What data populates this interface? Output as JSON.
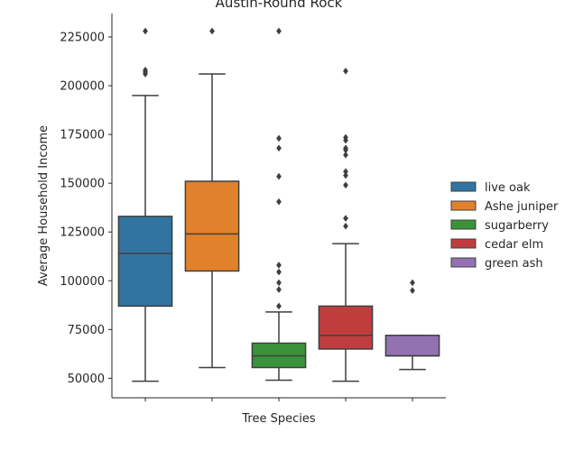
{
  "chart_data": {
    "type": "box",
    "title": "Austin-Round Rock",
    "xlabel": "Tree Species",
    "ylabel": "Average Household Income",
    "ylim": [
      40000,
      237000
    ],
    "yticks": [
      50000,
      75000,
      100000,
      125000,
      150000,
      175000,
      200000,
      225000
    ],
    "ytick_labels": [
      "50000",
      "75000",
      "100000",
      "125000",
      "150000",
      "175000",
      "200000",
      "225000"
    ],
    "grid": false,
    "legend_position": "right",
    "categories": [
      "live oak",
      "Ashe juniper",
      "sugarberry",
      "cedar elm",
      "green ash"
    ],
    "series": [
      {
        "name": "live oak",
        "color": "#3274a1",
        "whisker_low": 48500,
        "q1": 87000,
        "median": 114000,
        "q3": 133000,
        "whisker_high": 195000,
        "outliers": [
          206000,
          207000,
          208000,
          228000
        ]
      },
      {
        "name": "Ashe juniper",
        "color": "#e1812c",
        "whisker_low": 55500,
        "q1": 105000,
        "median": 124000,
        "q3": 151000,
        "whisker_high": 206000,
        "outliers": [
          228000
        ]
      },
      {
        "name": "sugarberry",
        "color": "#3a923a",
        "whisker_low": 49000,
        "q1": 55500,
        "median": 61500,
        "q3": 68000,
        "whisker_high": 84000,
        "outliers": [
          87000,
          95500,
          99000,
          104500,
          108000,
          140500,
          153500,
          168000,
          173000,
          228000
        ]
      },
      {
        "name": "cedar elm",
        "color": "#c03d3e",
        "whisker_low": 48500,
        "q1": 65000,
        "median": 72000,
        "q3": 87000,
        "whisker_high": 119000,
        "outliers": [
          128000,
          132000,
          149000,
          154000,
          156000,
          164500,
          167000,
          168000,
          172000,
          173500,
          207500
        ]
      },
      {
        "name": "green ash",
        "color": "#9372b2",
        "whisker_low": 54500,
        "q1": 61500,
        "median": 61500,
        "q3": 72000,
        "whisker_high": 72000,
        "outliers": [
          95000,
          99000
        ]
      }
    ]
  }
}
